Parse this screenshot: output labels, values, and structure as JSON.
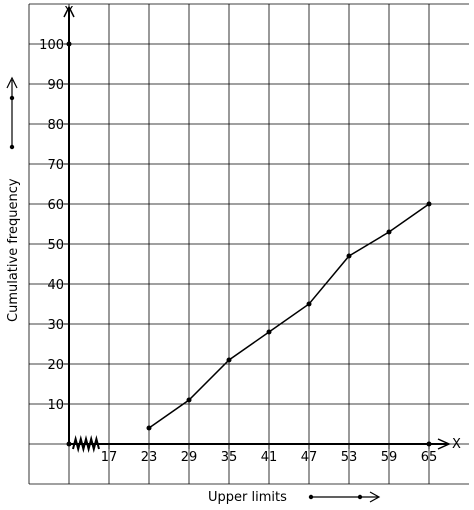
{
  "chart_data": {
    "type": "line",
    "x": [
      23,
      29,
      35,
      41,
      47,
      53,
      59,
      65
    ],
    "y": [
      4,
      11,
      21,
      28,
      35,
      47,
      53,
      60
    ],
    "x_ticks": [
      "17",
      "23",
      "29",
      "35",
      "41",
      "47",
      "53",
      "59",
      "65"
    ],
    "y_ticks": [
      "10",
      "20",
      "30",
      "40",
      "50",
      "60",
      "70",
      "80",
      "90",
      "100"
    ],
    "x_axis_name": "X",
    "y_axis_name": "Y",
    "xlabel": "Upper limits",
    "ylabel": "Cumulative frequency",
    "ylim": [
      0,
      110
    ],
    "axis_break": true,
    "grid": true,
    "line_color": "#000000"
  }
}
